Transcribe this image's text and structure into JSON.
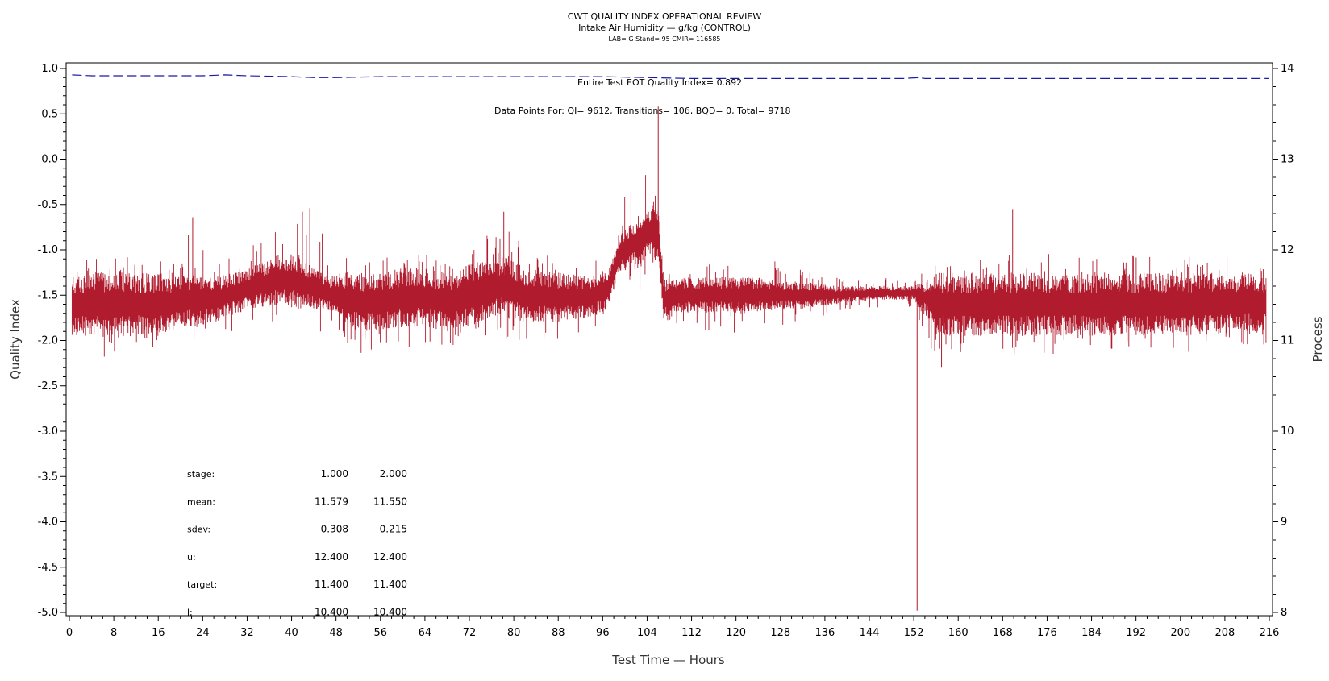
{
  "chart_data": {
    "type": "line",
    "title": "CWT QUALITY INDEX OPERATIONAL REVIEW",
    "subtitle": "Intake Air Humidity — g/kg (CONTROL)",
    "subtitle2": "LAB= G Stand= 95 CMIR= 116585",
    "xlabel": "Test Time — Hours",
    "ylabel_left": "Quality Index",
    "ylabel_right": "Process",
    "xlim": [
      0,
      216
    ],
    "xticks": [
      0,
      8,
      16,
      24,
      32,
      40,
      48,
      56,
      64,
      72,
      80,
      88,
      96,
      104,
      112,
      120,
      128,
      136,
      144,
      152,
      160,
      168,
      176,
      184,
      192,
      200,
      208,
      216
    ],
    "ylim_left": [
      -5.0,
      1.0
    ],
    "yticks_left": [
      "1.0",
      "0.5",
      "0.0",
      "-0.5",
      "-1.0",
      "-1.5",
      "-2.0",
      "-2.5",
      "-3.0",
      "-3.5",
      "-4.0",
      "-4.5",
      "-5.0"
    ],
    "ylim_right": [
      8,
      14
    ],
    "yticks_right": [
      "14",
      "13",
      "12",
      "11",
      "10",
      "9",
      "8"
    ],
    "annotations": {
      "eot": "Entire Test EOT Quality Index=   0.892",
      "points": "Data Points For: QI=  9612, Transitions=   106, BQD=     0, Total=  9718"
    },
    "series": [
      {
        "axis": "left",
        "color": "#1a1aa8",
        "style": "dashed",
        "points": [
          [
            0.5,
            0.93
          ],
          [
            4,
            0.92
          ],
          [
            8,
            0.92
          ],
          [
            16,
            0.92
          ],
          [
            24,
            0.92
          ],
          [
            28,
            0.93
          ],
          [
            32,
            0.92
          ],
          [
            40,
            0.91
          ],
          [
            44,
            0.9
          ],
          [
            48,
            0.9
          ],
          [
            56,
            0.91
          ],
          [
            64,
            0.91
          ],
          [
            72,
            0.91
          ],
          [
            80,
            0.91
          ],
          [
            88,
            0.91
          ],
          [
            96,
            0.91
          ],
          [
            104,
            0.9
          ],
          [
            112,
            0.89
          ],
          [
            120,
            0.89
          ],
          [
            128,
            0.89
          ],
          [
            136,
            0.89
          ],
          [
            144,
            0.89
          ],
          [
            150,
            0.89
          ],
          [
            153,
            0.9
          ],
          [
            154,
            0.89
          ],
          [
            160,
            0.89
          ],
          [
            176,
            0.89
          ],
          [
            192,
            0.89
          ],
          [
            208,
            0.89
          ],
          [
            216,
            0.89
          ]
        ]
      },
      {
        "axis": "right",
        "color": "#b01c2e",
        "style": "solid",
        "envelope": [
          {
            "x": 0.5,
            "lo": 11.05,
            "hi": 11.7,
            "min": 10.85,
            "max": 11.85
          },
          {
            "x": 4,
            "lo": 11.05,
            "hi": 11.75,
            "min": 10.8,
            "max": 11.9
          },
          {
            "x": 8,
            "lo": 11.0,
            "hi": 11.8,
            "min": 10.8,
            "max": 12.0
          },
          {
            "x": 12,
            "lo": 11.05,
            "hi": 11.75,
            "min": 10.85,
            "max": 11.95
          },
          {
            "x": 16,
            "lo": 11.05,
            "hi": 11.75,
            "min": 10.9,
            "max": 11.9
          },
          {
            "x": 20,
            "lo": 11.15,
            "hi": 11.7,
            "min": 11.0,
            "max": 11.85
          },
          {
            "x": 22,
            "lo": 11.15,
            "hi": 11.75,
            "min": 11.0,
            "max": 12.35
          },
          {
            "x": 26,
            "lo": 11.2,
            "hi": 11.7,
            "min": 11.05,
            "max": 11.85
          },
          {
            "x": 30,
            "lo": 11.3,
            "hi": 11.75,
            "min": 11.1,
            "max": 11.95
          },
          {
            "x": 34,
            "lo": 11.35,
            "hi": 11.85,
            "min": 11.15,
            "max": 12.1
          },
          {
            "x": 38,
            "lo": 11.4,
            "hi": 11.95,
            "min": 11.2,
            "max": 12.25
          },
          {
            "x": 41,
            "lo": 11.35,
            "hi": 11.95,
            "min": 11.05,
            "max": 12.35
          },
          {
            "x": 44,
            "lo": 11.35,
            "hi": 11.8,
            "min": 11.1,
            "max": 12.65
          },
          {
            "x": 47,
            "lo": 11.3,
            "hi": 11.7,
            "min": 11.1,
            "max": 11.9
          },
          {
            "x": 52,
            "lo": 11.1,
            "hi": 11.75,
            "min": 10.85,
            "max": 11.95
          },
          {
            "x": 56,
            "lo": 11.1,
            "hi": 11.75,
            "min": 10.9,
            "max": 11.95
          },
          {
            "x": 60,
            "lo": 11.15,
            "hi": 11.8,
            "min": 10.9,
            "max": 11.95
          },
          {
            "x": 64,
            "lo": 11.15,
            "hi": 11.8,
            "min": 10.95,
            "max": 11.95
          },
          {
            "x": 68,
            "lo": 11.1,
            "hi": 11.75,
            "min": 10.9,
            "max": 11.9
          },
          {
            "x": 72,
            "lo": 11.15,
            "hi": 11.85,
            "min": 11.0,
            "max": 12.0
          },
          {
            "x": 76,
            "lo": 11.25,
            "hi": 11.9,
            "min": 11.0,
            "max": 12.2
          },
          {
            "x": 78,
            "lo": 11.25,
            "hi": 11.95,
            "min": 11.0,
            "max": 12.4
          },
          {
            "x": 82,
            "lo": 11.2,
            "hi": 11.8,
            "min": 11.0,
            "max": 12.0
          },
          {
            "x": 88,
            "lo": 11.2,
            "hi": 11.75,
            "min": 11.0,
            "max": 11.95
          },
          {
            "x": 94,
            "lo": 11.25,
            "hi": 11.7,
            "min": 11.05,
            "max": 11.9
          },
          {
            "x": 97,
            "lo": 11.35,
            "hi": 11.8,
            "min": 11.15,
            "max": 12.05
          },
          {
            "x": 99,
            "lo": 11.7,
            "hi": 12.2,
            "min": 11.5,
            "max": 12.55
          },
          {
            "x": 101,
            "lo": 11.8,
            "hi": 12.3,
            "min": 11.55,
            "max": 12.75
          },
          {
            "x": 103,
            "lo": 11.85,
            "hi": 12.3,
            "min": 11.55,
            "max": 12.8
          },
          {
            "x": 105,
            "lo": 11.95,
            "hi": 12.55,
            "min": 11.6,
            "max": 13.0
          },
          {
            "x": 106,
            "lo": 11.8,
            "hi": 12.5,
            "min": 11.6,
            "max": 13.55
          },
          {
            "x": 107,
            "lo": 11.2,
            "hi": 11.7,
            "min": 11.1,
            "max": 11.75
          },
          {
            "x": 110,
            "lo": 11.3,
            "hi": 11.7,
            "min": 11.15,
            "max": 11.85
          },
          {
            "x": 116,
            "lo": 11.3,
            "hi": 11.7,
            "min": 11.1,
            "max": 11.85
          },
          {
            "x": 120,
            "lo": 11.3,
            "hi": 11.7,
            "min": 11.05,
            "max": 11.95
          },
          {
            "x": 124,
            "lo": 11.3,
            "hi": 11.7,
            "min": 11.1,
            "max": 12.0
          },
          {
            "x": 128,
            "lo": 11.35,
            "hi": 11.65,
            "min": 11.15,
            "max": 11.85
          },
          {
            "x": 132,
            "lo": 11.35,
            "hi": 11.65,
            "min": 11.2,
            "max": 11.8
          },
          {
            "x": 138,
            "lo": 11.4,
            "hi": 11.6,
            "min": 11.3,
            "max": 11.7
          },
          {
            "x": 144,
            "lo": 11.45,
            "hi": 11.6,
            "min": 11.35,
            "max": 11.7
          },
          {
            "x": 148,
            "lo": 11.45,
            "hi": 11.6,
            "min": 11.35,
            "max": 11.7
          },
          {
            "x": 152,
            "lo": 11.45,
            "hi": 11.6,
            "min": 11.35,
            "max": 11.65
          },
          {
            "x": 154,
            "lo": 11.3,
            "hi": 11.65,
            "min": 11.1,
            "max": 11.8
          },
          {
            "x": 156,
            "lo": 11.05,
            "hi": 11.75,
            "min": 10.7,
            "max": 11.85
          },
          {
            "x": 160,
            "lo": 11.05,
            "hi": 11.75,
            "min": 10.85,
            "max": 11.9
          },
          {
            "x": 168,
            "lo": 11.05,
            "hi": 11.75,
            "min": 10.9,
            "max": 11.95
          },
          {
            "x": 172,
            "lo": 11.05,
            "hi": 11.75,
            "min": 10.8,
            "max": 12.0
          },
          {
            "x": 180,
            "lo": 11.05,
            "hi": 11.75,
            "min": 10.85,
            "max": 11.95
          },
          {
            "x": 188,
            "lo": 11.05,
            "hi": 11.75,
            "min": 10.9,
            "max": 11.95
          },
          {
            "x": 196,
            "lo": 11.05,
            "hi": 11.75,
            "min": 10.85,
            "max": 11.95
          },
          {
            "x": 204,
            "lo": 11.05,
            "hi": 11.75,
            "min": 10.85,
            "max": 11.95
          },
          {
            "x": 212,
            "lo": 11.1,
            "hi": 11.75,
            "min": 10.9,
            "max": 11.95
          },
          {
            "x": 215.5,
            "lo": 11.1,
            "hi": 11.7,
            "min": 10.95,
            "max": 11.9
          }
        ],
        "spikes": [
          [
            22.2,
            12.36
          ],
          [
            44.2,
            12.66
          ],
          [
            78.2,
            12.42
          ],
          [
            106.0,
            13.58
          ],
          [
            152.6,
            8.02
          ],
          [
            157.0,
            10.7
          ],
          [
            169.8,
            12.45
          ]
        ]
      }
    ],
    "stats_table": {
      "rows": [
        {
          "label": "stage:",
          "v1": "1.000",
          "v2": "2.000"
        },
        {
          "label": "mean:",
          "v1": "11.579",
          "v2": "11.550"
        },
        {
          "label": "sdev:",
          "v1": "0.308",
          "v2": "0.215"
        },
        {
          "label": "u:",
          "v1": "12.400",
          "v2": "12.400"
        },
        {
          "label": "target:",
          "v1": "11.400",
          "v2": "11.400"
        },
        {
          "label": "l:",
          "v1": "10.400",
          "v2": "10.400"
        }
      ]
    }
  }
}
